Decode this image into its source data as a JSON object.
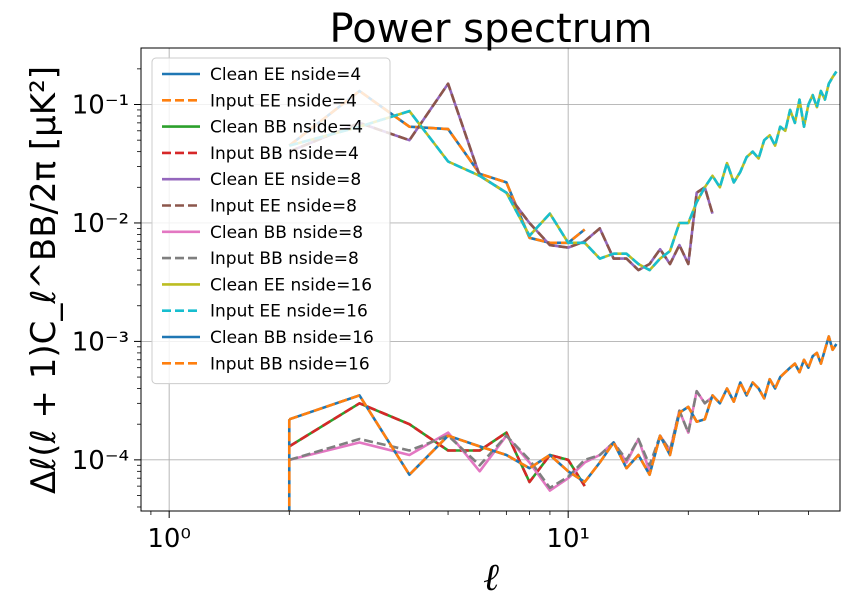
{
  "chart_data": {
    "type": "line",
    "title": "Power spectrum",
    "xlabel": "ℓ",
    "ylabel": "Δℓ(ℓ + 1)C_ℓ^BB/2π [μK²]",
    "xscale": "log",
    "yscale": "log",
    "xlim": [
      0.85,
      48
    ],
    "ylim": [
      3.7e-05,
      0.3
    ],
    "xticks": [
      1,
      10
    ],
    "xtick_labels": [
      "10⁰",
      "10¹"
    ],
    "yticks": [
      0.0001,
      0.001,
      0.01,
      0.1
    ],
    "ytick_labels": [
      "10⁻⁴",
      "10⁻³",
      "10⁻²",
      "10⁻¹"
    ],
    "grid": true,
    "legend_position": "upper-left",
    "series": [
      {
        "name": "Clean EE nside=4",
        "color": "#1f77b4",
        "dash": "solid",
        "x": [
          2,
          3,
          4,
          5,
          6,
          7,
          8,
          9,
          10,
          11
        ],
        "y": [
          0.045,
          0.13,
          0.065,
          0.062,
          0.026,
          0.022,
          0.0075,
          0.0068,
          0.0068,
          0.0088
        ]
      },
      {
        "name": "Input EE nside=4",
        "color": "#ff7f0e",
        "dash": "dashed",
        "x": [
          2,
          3,
          4,
          5,
          6,
          7,
          8,
          9,
          10,
          11
        ],
        "y": [
          0.045,
          0.13,
          0.065,
          0.062,
          0.026,
          0.022,
          0.0075,
          0.0068,
          0.0068,
          0.0088
        ]
      },
      {
        "name": "Clean BB nside=4",
        "color": "#2ca02c",
        "dash": "solid",
        "x": [
          2,
          3,
          4,
          5,
          6,
          7,
          8,
          9,
          10,
          11
        ],
        "y": [
          0.00013,
          0.0003,
          0.0002,
          0.00012,
          0.00012,
          0.00017,
          6.5e-05,
          0.00011,
          0.0001,
          6e-05
        ]
      },
      {
        "name": "Input BB nside=4",
        "color": "#d62728",
        "dash": "dashed",
        "x": [
          2,
          3,
          4,
          5,
          6,
          7,
          8,
          9,
          10,
          11
        ],
        "y": [
          0.00013,
          0.0003,
          0.0002,
          0.00012,
          0.00012,
          0.00017,
          6.5e-05,
          0.00011,
          0.0001,
          6e-05
        ]
      },
      {
        "name": "Clean EE nside=8",
        "color": "#9467bd",
        "dash": "solid",
        "x": [
          2,
          3,
          4,
          5,
          6,
          7,
          8,
          9,
          10,
          11,
          12,
          13,
          14,
          15,
          16,
          17,
          18,
          19,
          20,
          21,
          22,
          23
        ],
        "y": [
          0.04,
          0.07,
          0.05,
          0.15,
          0.025,
          0.018,
          0.01,
          0.0065,
          0.0062,
          0.007,
          0.009,
          0.005,
          0.005,
          0.004,
          0.0045,
          0.006,
          0.0045,
          0.0065,
          0.0045,
          0.018,
          0.02,
          0.012
        ]
      },
      {
        "name": "Input EE nside=8",
        "color": "#8c564b",
        "dash": "dashed",
        "x": [
          2,
          3,
          4,
          5,
          6,
          7,
          8,
          9,
          10,
          11,
          12,
          13,
          14,
          15,
          16,
          17,
          18,
          19,
          20,
          21,
          22,
          23
        ],
        "y": [
          0.04,
          0.07,
          0.05,
          0.15,
          0.025,
          0.018,
          0.01,
          0.0065,
          0.0062,
          0.007,
          0.009,
          0.005,
          0.005,
          0.004,
          0.0045,
          0.006,
          0.0045,
          0.0065,
          0.0045,
          0.018,
          0.02,
          0.012
        ]
      },
      {
        "name": "Clean BB nside=8",
        "color": "#e377c2",
        "dash": "solid",
        "x": [
          2,
          3,
          4,
          5,
          6,
          7,
          8,
          9,
          10,
          11,
          12,
          13,
          14,
          15,
          16,
          17,
          18,
          19,
          20,
          21,
          22,
          23
        ],
        "y": [
          0.0001,
          0.00014,
          0.00011,
          0.00017,
          8e-05,
          0.00016,
          9.5e-05,
          5.5e-05,
          7e-05,
          9.5e-05,
          0.00011,
          0.00014,
          9.5e-05,
          0.00015,
          8e-05,
          0.00016,
          0.00012,
          0.00026,
          0.00017,
          0.00038,
          0.0003,
          0.00034
        ]
      },
      {
        "name": "Input BB nside=8",
        "color": "#7f7f7f",
        "dash": "dashed",
        "x": [
          2,
          3,
          4,
          5,
          6,
          7,
          8,
          9,
          10,
          11,
          12,
          13,
          14,
          15,
          16,
          17,
          18,
          19,
          20,
          21,
          22,
          23
        ],
        "y": [
          0.0001,
          0.00015,
          0.00012,
          0.00016,
          9e-05,
          0.00016,
          0.0001,
          5.8e-05,
          7.2e-05,
          0.0001,
          0.00011,
          0.00014,
          0.0001,
          0.00015,
          9e-05,
          0.00016,
          0.00012,
          0.00026,
          0.00017,
          0.00038,
          0.0003,
          0.00034
        ]
      },
      {
        "name": "Clean EE nside=16",
        "color": "#bcbd22",
        "dash": "solid",
        "x": [
          2,
          3,
          4,
          5,
          6,
          7,
          8,
          9,
          10,
          11,
          12,
          13,
          14,
          15,
          16,
          17,
          18,
          19,
          20,
          21,
          22,
          23,
          24,
          25,
          26,
          27,
          28,
          29,
          30,
          31,
          32,
          33,
          34,
          35,
          36,
          37,
          38,
          39,
          40,
          41,
          42,
          43,
          44,
          45,
          46,
          47
        ],
        "y": [
          0.045,
          0.065,
          0.088,
          0.033,
          0.025,
          0.018,
          0.0078,
          0.012,
          0.0068,
          0.0068,
          0.005,
          0.0055,
          0.0055,
          0.0045,
          0.004,
          0.005,
          0.0058,
          0.01,
          0.01,
          0.015,
          0.02,
          0.025,
          0.02,
          0.032,
          0.022,
          0.027,
          0.036,
          0.04,
          0.035,
          0.05,
          0.055,
          0.045,
          0.065,
          0.06,
          0.09,
          0.07,
          0.11,
          0.065,
          0.1,
          0.12,
          0.095,
          0.13,
          0.11,
          0.15,
          0.17,
          0.19
        ]
      },
      {
        "name": "Input EE nside=16",
        "color": "#17becf",
        "dash": "dashed",
        "x": [
          2,
          3,
          4,
          5,
          6,
          7,
          8,
          9,
          10,
          11,
          12,
          13,
          14,
          15,
          16,
          17,
          18,
          19,
          20,
          21,
          22,
          23,
          24,
          25,
          26,
          27,
          28,
          29,
          30,
          31,
          32,
          33,
          34,
          35,
          36,
          37,
          38,
          39,
          40,
          41,
          42,
          43,
          44,
          45,
          46,
          47
        ],
        "y": [
          0.045,
          0.065,
          0.088,
          0.033,
          0.025,
          0.018,
          0.0078,
          0.012,
          0.0068,
          0.0068,
          0.005,
          0.0055,
          0.0055,
          0.0045,
          0.004,
          0.005,
          0.0058,
          0.01,
          0.01,
          0.015,
          0.02,
          0.025,
          0.02,
          0.032,
          0.022,
          0.027,
          0.036,
          0.04,
          0.035,
          0.05,
          0.055,
          0.045,
          0.065,
          0.06,
          0.09,
          0.07,
          0.11,
          0.065,
          0.1,
          0.12,
          0.095,
          0.13,
          0.11,
          0.15,
          0.17,
          0.19
        ]
      },
      {
        "name": "Clean BB nside=16",
        "color": "#1f77b4",
        "dash": "solid",
        "x": [
          2,
          3,
          4,
          5,
          6,
          7,
          8,
          9,
          10,
          11,
          12,
          13,
          14,
          15,
          16,
          17,
          18,
          19,
          20,
          21,
          22,
          23,
          24,
          25,
          26,
          27,
          28,
          29,
          30,
          31,
          32,
          33,
          34,
          35,
          36,
          37,
          38,
          39,
          40,
          41,
          42,
          43,
          44,
          45,
          46,
          47
        ],
        "y": [
          0.00022,
          0.00035,
          7.5e-05,
          0.00016,
          0.00013,
          0.00011,
          8.5e-05,
          0.00011,
          8e-05,
          6.5e-05,
          9.5e-05,
          0.00014,
          8.5e-05,
          0.00011,
          7.5e-05,
          0.00016,
          0.00011,
          0.00025,
          0.00028,
          0.00021,
          0.00022,
          0.00035,
          0.0003,
          0.0004,
          0.00031,
          0.00045,
          0.00035,
          0.00045,
          0.0004,
          0.00033,
          0.00048,
          0.0004,
          0.0005,
          0.00055,
          0.0006,
          0.00065,
          0.00055,
          0.0007,
          0.0006,
          0.00075,
          0.0008,
          0.00065,
          0.00085,
          0.0011,
          0.00085,
          0.00095
        ]
      },
      {
        "name": "Input BB nside=16",
        "color": "#ff7f0e",
        "dash": "dashed",
        "x": [
          2,
          3,
          4,
          5,
          6,
          7,
          8,
          9,
          10,
          11,
          12,
          13,
          14,
          15,
          16,
          17,
          18,
          19,
          20,
          21,
          22,
          23,
          24,
          25,
          26,
          27,
          28,
          29,
          30,
          31,
          32,
          33,
          34,
          35,
          36,
          37,
          38,
          39,
          40,
          41,
          42,
          43,
          44,
          45,
          46,
          47
        ],
        "y": [
          0.00022,
          0.00035,
          7.5e-05,
          0.00016,
          0.00013,
          0.00011,
          8.5e-05,
          0.00011,
          8e-05,
          6.5e-05,
          9.5e-05,
          0.00014,
          8.5e-05,
          0.00011,
          7.5e-05,
          0.00016,
          0.00011,
          0.00025,
          0.00028,
          0.00021,
          0.00022,
          0.00035,
          0.0003,
          0.0004,
          0.00031,
          0.00045,
          0.00035,
          0.00045,
          0.0004,
          0.00033,
          0.00048,
          0.0004,
          0.0005,
          0.00055,
          0.0006,
          0.00065,
          0.00055,
          0.0007,
          0.0006,
          0.00075,
          0.0008,
          0.00065,
          0.00085,
          0.0011,
          0.00085,
          0.00095
        ]
      }
    ]
  }
}
